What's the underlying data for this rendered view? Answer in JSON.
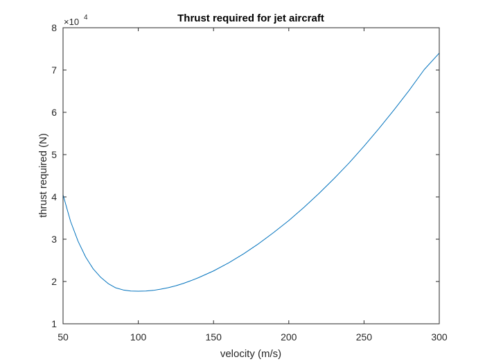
{
  "chart_data": {
    "type": "line",
    "title": "Thrust required for jet aircraft",
    "xlabel": "velocity (m/s)",
    "ylabel": "thrust required (N)",
    "xlim": [
      50,
      300
    ],
    "ylim": [
      1,
      8
    ],
    "y_multiplier": "×10",
    "y_multiplier_exponent": "4",
    "x_ticks": [
      "50",
      "100",
      "150",
      "200",
      "250",
      "300"
    ],
    "y_ticks": [
      "1",
      "2",
      "3",
      "4",
      "5",
      "6",
      "7",
      "8"
    ],
    "grid": false,
    "line_color": "#0072BD",
    "series": [
      {
        "x": [
          50,
          55,
          60,
          65,
          70,
          75,
          80,
          85,
          90,
          95,
          100,
          105,
          110,
          115,
          120,
          125,
          130,
          135,
          140,
          145,
          150,
          160,
          170,
          180,
          190,
          200,
          210,
          220,
          230,
          240,
          250,
          260,
          270,
          280,
          290,
          300
        ],
        "y": [
          4.05,
          3.42,
          2.95,
          2.58,
          2.3,
          2.1,
          1.95,
          1.85,
          1.8,
          1.775,
          1.77,
          1.775,
          1.79,
          1.82,
          1.855,
          1.9,
          1.955,
          2.02,
          2.09,
          2.17,
          2.25,
          2.44,
          2.655,
          2.895,
          3.16,
          3.44,
          3.75,
          4.08,
          4.43,
          4.8,
          5.2,
          5.62,
          6.06,
          6.52,
          7.01,
          7.4
        ]
      }
    ]
  }
}
